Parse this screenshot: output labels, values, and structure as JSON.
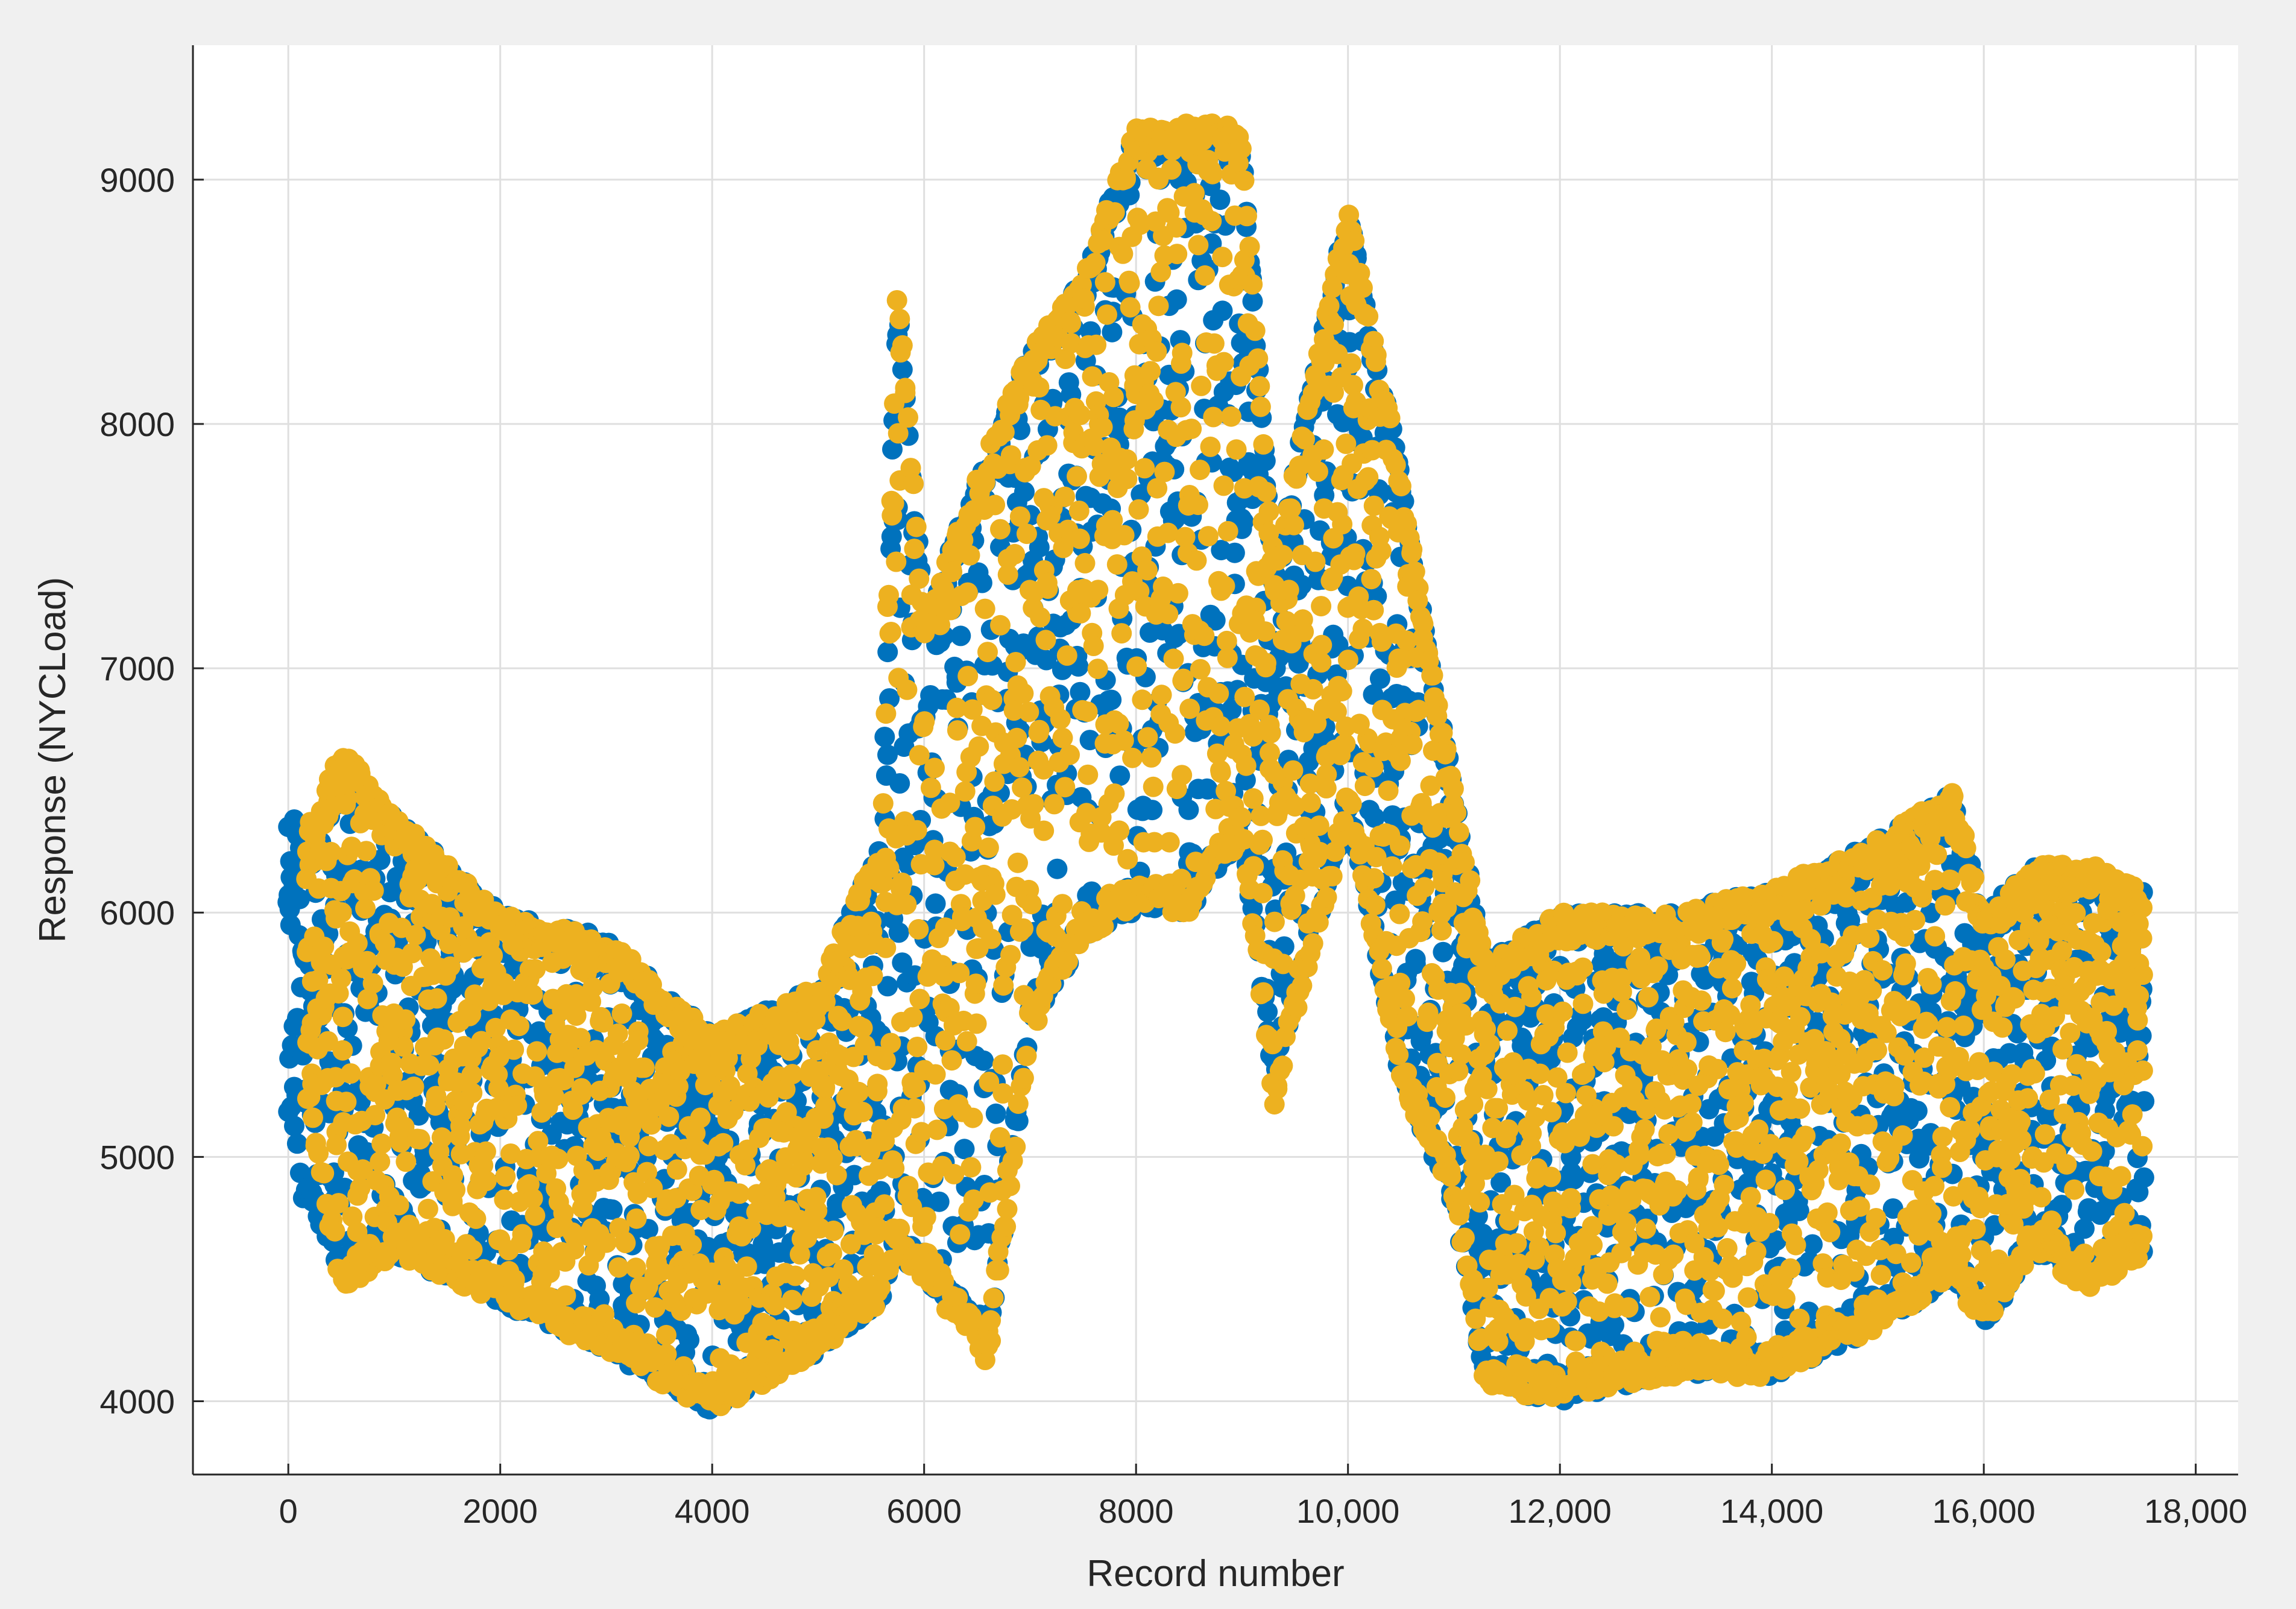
{
  "chart_data": {
    "type": "scatter",
    "title": "",
    "xlabel": "Record number",
    "ylabel": "Response (NYCLoad)",
    "xlim": [
      -900,
      18400
    ],
    "ylim": [
      3700,
      9550
    ],
    "xticks": [
      0,
      2000,
      4000,
      6000,
      8000,
      10000,
      12000,
      14000,
      16000,
      18000
    ],
    "xtick_labels": [
      "0",
      "2000",
      "4000",
      "6000",
      "8000",
      "10,000",
      "12,000",
      "14,000",
      "16,000",
      "18,000"
    ],
    "yticks": [
      4000,
      5000,
      6000,
      7000,
      8000,
      9000
    ],
    "ytick_labels": [
      "4000",
      "5000",
      "6000",
      "7000",
      "8000",
      "9000"
    ],
    "grid": true,
    "legend": "none",
    "colors": {
      "blue": "#0072bd",
      "orange": "#edb120",
      "grid": "#dfdfdf",
      "axis": "#262626",
      "background": "#ffffff",
      "figure": "#f0f0f0"
    },
    "series": [
      {
        "color": "#0072bd",
        "x_range": [
          0,
          17500
        ],
        "envelope_x": [
          0,
          50,
          100,
          150,
          200,
          500,
          1000,
          2000,
          3000,
          4000,
          5000,
          5600,
          5750,
          6000,
          6600,
          7000,
          7500,
          8000,
          8500,
          9000,
          9300,
          10000,
          10500,
          11000,
          11300,
          12000,
          13000,
          14000,
          15000,
          15700,
          16000,
          16500,
          17000,
          17500
        ],
        "envelope_lo": [
          5100,
          5100,
          4900,
          4750,
          4800,
          4500,
          4600,
          4400,
          4200,
          3950,
          4200,
          4400,
          4600,
          4500,
          4200,
          5500,
          5900,
          6000,
          6000,
          6300,
          5300,
          6400,
          5300,
          4800,
          4050,
          4000,
          4100,
          4100,
          4300,
          4500,
          4300,
          4600,
          4500,
          4600
        ],
        "envelope_hi": [
          6450,
          6450,
          6300,
          6200,
          6300,
          6600,
          6400,
          6000,
          5900,
          5500,
          5700,
          6300,
          8600,
          7200,
          7900,
          8300,
          8600,
          9200,
          9200,
          9200,
          7400,
          8900,
          7800,
          6500,
          5800,
          6000,
          6000,
          6100,
          6300,
          6500,
          6000,
          6200,
          6200,
          6100
        ]
      },
      {
        "color": "#edb120",
        "x_range": [
          180,
          17500
        ],
        "envelope_x": [
          180,
          500,
          1000,
          2000,
          3000,
          4000,
          5000,
          5600,
          5750,
          6000,
          6600,
          7000,
          7500,
          8000,
          8500,
          9000,
          9300,
          10000,
          10500,
          11000,
          11300,
          12000,
          13000,
          14000,
          15000,
          15700,
          16000,
          16500,
          17000,
          17500
        ],
        "envelope_lo": [
          5200,
          4450,
          4600,
          4400,
          4200,
          3950,
          4200,
          4400,
          4600,
          4500,
          4150,
          5500,
          5900,
          6000,
          6000,
          6300,
          5200,
          6400,
          5300,
          4800,
          4050,
          4000,
          4100,
          4100,
          4300,
          4500,
          4300,
          4600,
          4450,
          4600
        ],
        "envelope_hi": [
          6350,
          6700,
          6400,
          6000,
          5900,
          5500,
          5700,
          6300,
          8600,
          7200,
          7900,
          8300,
          8600,
          9230,
          9230,
          9230,
          7400,
          8900,
          7800,
          6500,
          5800,
          6000,
          6000,
          6100,
          6300,
          6500,
          6000,
          6200,
          6200,
          6100
        ]
      }
    ]
  }
}
